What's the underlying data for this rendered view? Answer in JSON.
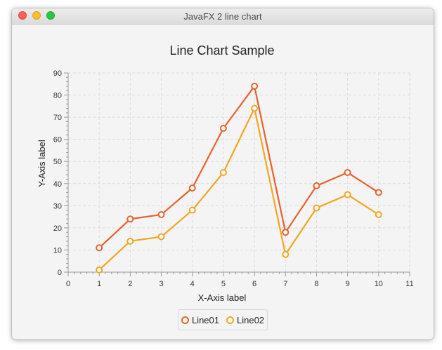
{
  "window": {
    "title": "JavaFX 2 line chart"
  },
  "icons": {
    "close": "close-icon",
    "minimize": "minimize-icon",
    "maximize": "maximize-icon"
  },
  "colors": {
    "series_1": "#e8612c",
    "series_2": "#f3a622",
    "grid": "#dcdcdc",
    "plot_background": "#f4f4f4"
  },
  "chart_data": {
    "type": "line",
    "title": "Line Chart Sample",
    "xlabel": "X-Axis label",
    "ylabel": "Y-Axis label",
    "xlim": [
      0,
      11
    ],
    "ylim": [
      0,
      90
    ],
    "xticks": [
      0,
      1,
      2,
      3,
      4,
      5,
      6,
      7,
      8,
      9,
      10,
      11
    ],
    "yticks": [
      0,
      10,
      20,
      30,
      40,
      50,
      60,
      70,
      80,
      90
    ],
    "grid": true,
    "legend_position": "bottom",
    "x": [
      1,
      2,
      3,
      4,
      5,
      6,
      7,
      8,
      9,
      10
    ],
    "series": [
      {
        "name": "Line01",
        "color": "#e8612c",
        "values": [
          11,
          24,
          26,
          38,
          65,
          84,
          18,
          39,
          45,
          36
        ]
      },
      {
        "name": "Line02",
        "color": "#f3a622",
        "values": [
          1,
          14,
          16,
          28,
          45,
          74,
          8,
          29,
          35,
          26
        ]
      }
    ]
  }
}
